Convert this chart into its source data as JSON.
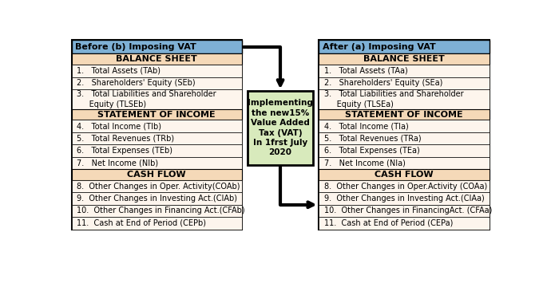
{
  "before_title": "Before (b) Imposing VAT",
  "after_title": "After (a) Imposing VAT",
  "header_bg": "#7EB0D5",
  "section_header_bg": "#F5D9B8",
  "item_bg": "#FDF5ED",
  "center_box_bg": "#D8EABC",
  "border_color": "#000000",
  "before_sections": [
    {
      "header": "BALANCE SHEET",
      "items": [
        "1.   Total Assets (TAb)",
        "2.   Shareholders' Equity (SEb)",
        "3.   Total Liabilities and Shareholder\n     Equity (TLSEb)"
      ]
    },
    {
      "header": "STATEMENT OF INCOME",
      "items": [
        "4.   Total Income (TIb)",
        "5.   Total Revenues (TRb)",
        "6.   Total Expenses (TEb)",
        "7.   Net Income (NIb)"
      ]
    },
    {
      "header": "CASH FLOW",
      "items": [
        "8.  Other Changes in Oper. Activity(COAb)",
        "9.  Other Changes in Investing Act.(CIAb)",
        "10.  Other Changes in Financing Act.(CFAb)",
        "11.  Cash at End of Period (CEPb)"
      ]
    }
  ],
  "after_sections": [
    {
      "header": "BALANCE SHEET",
      "items": [
        "1.   Total Assets (TAa)",
        "2.   Shareholders' Equity (SEa)",
        "3.   Total Liabilities and Shareholder\n     Equity (TLSEa)"
      ]
    },
    {
      "header": "STATEMENT OF INCOME",
      "items": [
        "4.   Total Income (TIa)",
        "5.   Total Revenues (TRa)",
        "6.   Total Expenses (TEa)",
        "7.   Net Income (NIa)"
      ]
    },
    {
      "header": "CASH FLOW",
      "items": [
        "8.  Other Changes in Oper.Activity (COAa)",
        "9.  Other Changes in Investing Act.(CIAa)",
        "10.  Other Changes in FinancingAct. (CFAa)",
        "11.  Cash at End of Period (CEPa)"
      ]
    }
  ],
  "center_text": "Implementing\nthe new15%\nValue Added\nTax (VAT)\nIn 1frst July\n2020"
}
